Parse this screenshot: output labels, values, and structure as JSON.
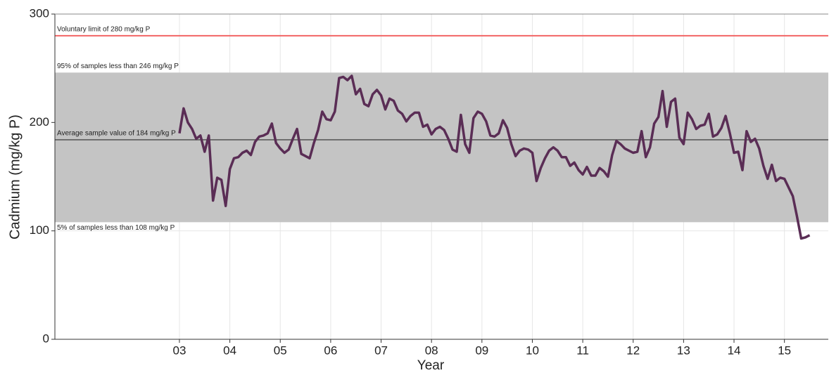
{
  "chart_data": {
    "type": "line",
    "x_label": "Year",
    "y_label": "Cadmium (mg/kg P)",
    "color": "#5a2d55",
    "grid": true,
    "xlim": [
      0.53,
      15.87
    ],
    "ylim": [
      0,
      300
    ],
    "yticks": [
      0,
      100,
      200,
      300
    ],
    "xticks": [
      {
        "value": 3,
        "label": "03"
      },
      {
        "value": 4,
        "label": "04"
      },
      {
        "value": 5,
        "label": "05"
      },
      {
        "value": 6,
        "label": "06"
      },
      {
        "value": 7,
        "label": "07"
      },
      {
        "value": 8,
        "label": "08"
      },
      {
        "value": 9,
        "label": "09"
      },
      {
        "value": 10,
        "label": "10"
      },
      {
        "value": 11,
        "label": "11"
      },
      {
        "value": 12,
        "label": "12"
      },
      {
        "value": 13,
        "label": "13"
      },
      {
        "value": 14,
        "label": "14"
      },
      {
        "value": 15,
        "label": "15"
      }
    ],
    "band": {
      "low": 108,
      "high": 246,
      "color": "#c4c4c4",
      "high_label": "95% of samples less than 246 mg/kg P",
      "low_label": "5% of samples less than 108 mg/kg P"
    },
    "reference_lines": [
      {
        "value": 280,
        "label": "Voluntary limit of 280 mg/kg P",
        "color": "#f26464"
      },
      {
        "value": 184,
        "label": "Average sample value of 184 mg/kg P",
        "color": "#6e6e6e"
      }
    ],
    "x": [
      3,
      3.083,
      3.167,
      3.25,
      3.333,
      3.417,
      3.5,
      3.583,
      3.667,
      3.75,
      3.833,
      3.917,
      4,
      4.083,
      4.167,
      4.25,
      4.333,
      4.417,
      4.5,
      4.583,
      4.667,
      4.75,
      4.833,
      4.917,
      5,
      5.083,
      5.167,
      5.25,
      5.333,
      5.417,
      5.5,
      5.583,
      5.667,
      5.75,
      5.833,
      5.917,
      6,
      6.083,
      6.167,
      6.25,
      6.333,
      6.417,
      6.5,
      6.583,
      6.667,
      6.75,
      6.833,
      6.917,
      7,
      7.083,
      7.167,
      7.25,
      7.333,
      7.417,
      7.5,
      7.583,
      7.667,
      7.75,
      7.833,
      7.917,
      8,
      8.083,
      8.167,
      8.25,
      8.333,
      8.417,
      8.5,
      8.583,
      8.667,
      8.75,
      8.833,
      8.917,
      9,
      9.083,
      9.167,
      9.25,
      9.333,
      9.417,
      9.5,
      9.583,
      9.667,
      9.75,
      9.833,
      9.917,
      10,
      10.083,
      10.167,
      10.25,
      10.333,
      10.417,
      10.5,
      10.583,
      10.667,
      10.75,
      10.833,
      10.917,
      11,
      11.083,
      11.167,
      11.25,
      11.333,
      11.417,
      11.5,
      11.583,
      11.667,
      11.75,
      11.833,
      11.917,
      12,
      12.083,
      12.167,
      12.25,
      12.333,
      12.417,
      12.5,
      12.583,
      12.667,
      12.75,
      12.833,
      12.917,
      13,
      13.083,
      13.167,
      13.25,
      13.333,
      13.417,
      13.5,
      13.583,
      13.667,
      13.75,
      13.833,
      13.917,
      14,
      14.083,
      14.167,
      14.25,
      14.333,
      14.417,
      14.5,
      14.583,
      14.667,
      14.75,
      14.833,
      14.917,
      15,
      15.083,
      15.167,
      15.25,
      15.333,
      15.417,
      15.5
    ],
    "values": [
      190,
      213,
      200,
      194,
      185,
      188,
      173,
      188,
      128,
      149,
      147,
      123,
      157,
      167,
      168,
      172,
      174,
      170,
      182,
      187,
      188,
      190,
      199,
      181,
      176,
      172,
      175,
      185,
      194,
      171,
      169,
      167,
      181,
      193,
      210,
      203,
      202,
      210,
      241,
      242,
      239,
      243,
      226,
      231,
      217,
      215,
      226,
      230,
      225,
      212,
      222,
      220,
      211,
      208,
      201,
      206,
      209,
      209,
      196,
      198,
      189,
      194,
      196,
      193,
      185,
      175,
      173,
      207,
      180,
      172,
      204,
      210,
      208,
      201,
      188,
      187,
      190,
      202,
      195,
      180,
      169,
      174,
      176,
      175,
      172,
      146,
      158,
      167,
      174,
      177,
      174,
      168,
      168,
      160,
      163,
      156,
      152,
      159,
      151,
      151,
      158,
      155,
      150,
      170,
      183,
      180,
      176,
      174,
      172,
      173,
      192,
      168,
      177,
      199,
      205,
      229,
      196,
      219,
      222,
      186,
      180,
      209,
      203,
      194,
      197,
      198,
      208,
      187,
      189,
      195,
      206,
      190,
      172,
      173,
      156,
      192,
      182,
      185,
      176,
      160,
      148,
      161,
      146,
      149,
      148,
      140,
      132,
      113,
      93,
      94,
      96
    ]
  }
}
